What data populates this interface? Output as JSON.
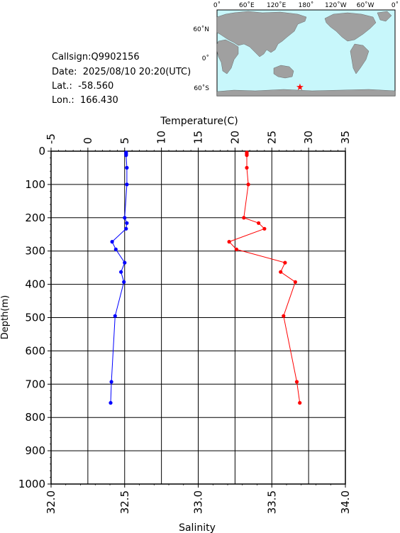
{
  "info": {
    "callsign": "Callsign:Q9902156",
    "date": "Date:  2025/08/10 20:20(UTC)",
    "lat": "Lat.:  -58.560",
    "lon": "Lon.:  166.430"
  },
  "map": {
    "top_labels": [
      "0˚",
      "60˚E",
      "120˚E",
      "180˚",
      "120˚W",
      "60˚W",
      "0˚"
    ],
    "left_labels": [
      "60˚N",
      "0˚",
      "60˚S"
    ],
    "ocean_color": "#c8f7fb",
    "land_color": "#a0a0a0",
    "marker_color": "#ff0000"
  },
  "chart_data": {
    "type": "line",
    "title": "",
    "xlabel_top": "Temperature(C)",
    "xlabel_bottom": "Salinity",
    "ylabel": "Depth(m)",
    "temperature_ticks": [
      "-5",
      "0",
      "5",
      "10",
      "15",
      "20",
      "25",
      "30",
      "35"
    ],
    "salinity_ticks": [
      "32.0",
      "32.5",
      "33.0",
      "33.5",
      "34.0"
    ],
    "depth_ticks": [
      "0",
      "100",
      "200",
      "300",
      "400",
      "500",
      "600",
      "700",
      "800",
      "900",
      "1000"
    ],
    "temperature_range": [
      -5,
      35
    ],
    "salinity_range": [
      32.0,
      34.0
    ],
    "depth_range": [
      0,
      1000
    ],
    "grid": true,
    "series": [
      {
        "name": "",
        "axis": "temperature",
        "color": "#0000ff",
        "depth": [
          4,
          8,
          12,
          50,
          100,
          200,
          216,
          233,
          272,
          295,
          335,
          363,
          393,
          495,
          693,
          756
        ],
        "values": [
          5.2,
          5.2,
          5.2,
          5.3,
          5.3,
          5.0,
          5.3,
          5.2,
          3.3,
          3.8,
          5.0,
          4.5,
          4.9,
          3.7,
          3.2,
          3.1
        ]
      },
      {
        "name": "",
        "axis": "salinity",
        "color": "#ff0000",
        "depth": [
          4,
          8,
          12,
          50,
          100,
          200,
          216,
          233,
          272,
          295,
          335,
          363,
          393,
          495,
          693,
          756
        ],
        "values": [
          33.33,
          33.33,
          33.33,
          33.33,
          33.34,
          33.31,
          33.41,
          33.45,
          33.21,
          33.26,
          33.59,
          33.56,
          33.66,
          33.58,
          33.67,
          33.69
        ]
      }
    ]
  }
}
